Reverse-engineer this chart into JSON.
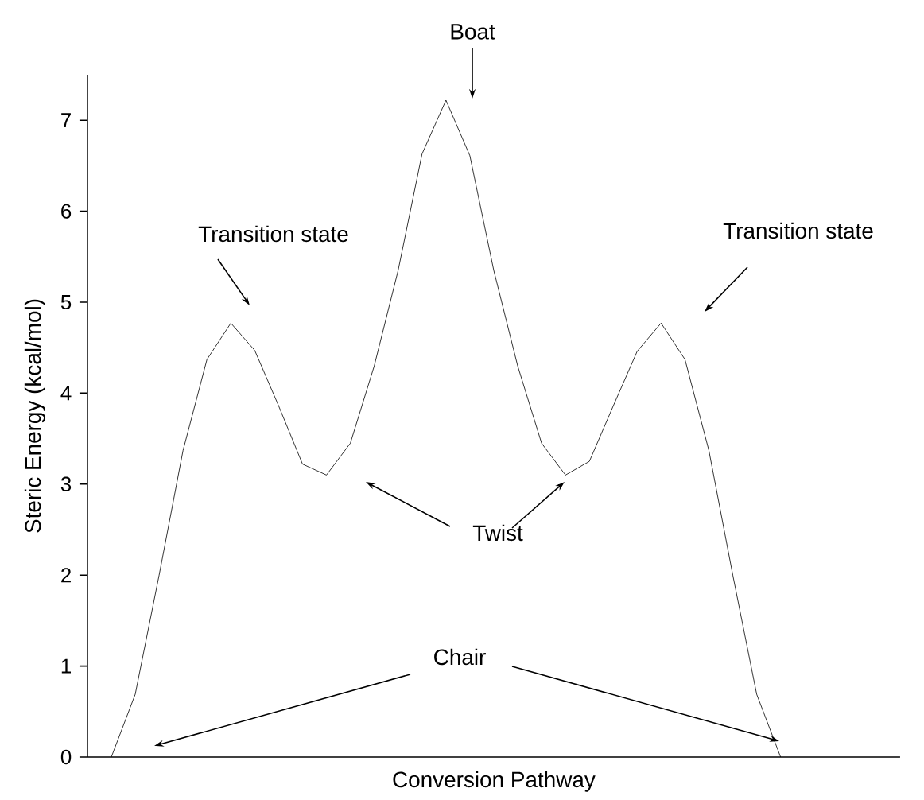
{
  "chart_data": {
    "type": "line",
    "xlabel": "Conversion Pathway",
    "ylabel": "Steric Energy (kcal/mol)",
    "categories": [
      null,
      null,
      null,
      null,
      null,
      null,
      null,
      null,
      null,
      null,
      null,
      null,
      null,
      null,
      null,
      null,
      null,
      null,
      null,
      null,
      null,
      null,
      null,
      null,
      null,
      null,
      null,
      null,
      null
    ],
    "values": [
      0,
      0.69,
      2.0,
      3.37,
      4.37,
      4.77,
      4.47,
      3.86,
      3.22,
      3.1,
      3.45,
      4.3,
      5.35,
      6.63,
      7.22,
      6.61,
      5.35,
      4.3,
      3.45,
      3.1,
      3.25,
      3.86,
      4.46,
      4.77,
      4.37,
      3.37,
      2.0,
      0.69,
      0
    ],
    "color": "#000000",
    "ylim": [
      0,
      7.5
    ],
    "yticks": [
      0,
      1,
      2,
      3,
      4,
      5,
      6,
      7
    ],
    "tick_labels": "y",
    "marker": "none",
    "line_style": "solid",
    "grid": false,
    "annotations": [
      "Boat",
      "Transition state",
      "Transition state",
      "Twist",
      "Chair"
    ]
  }
}
